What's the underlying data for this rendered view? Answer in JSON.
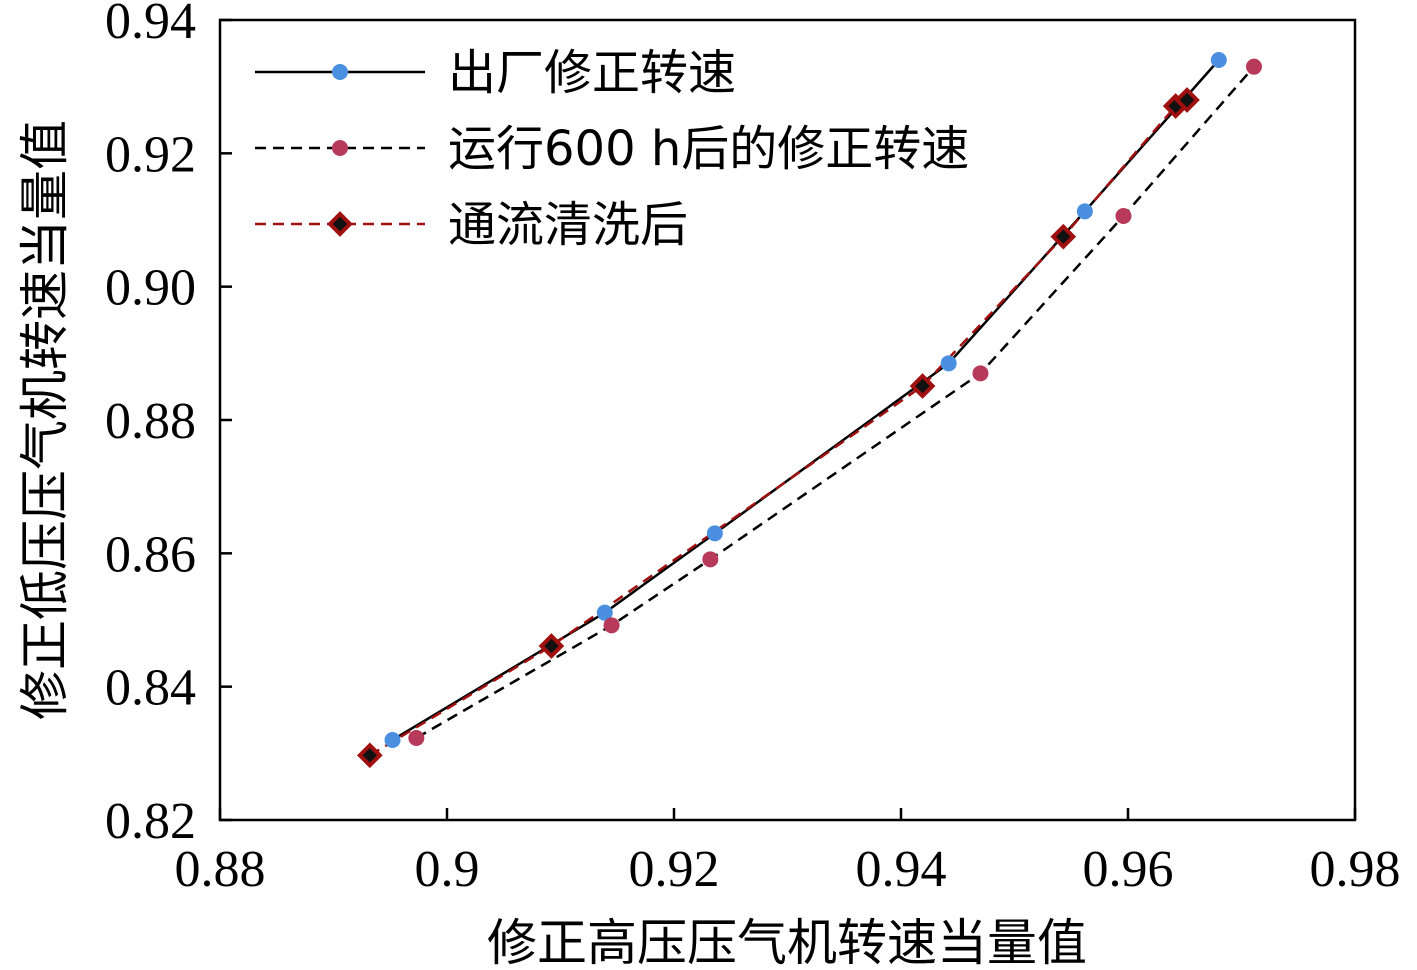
{
  "chart_data": {
    "type": "line",
    "title": "",
    "xlabel": "修正高压压气机转速当量值",
    "ylabel": "修正低压压气机转速当量值",
    "xlim": [
      0.88,
      0.98
    ],
    "ylim": [
      0.82,
      0.94
    ],
    "xticks": [
      0.88,
      0.9,
      0.92,
      0.94,
      0.96,
      0.98
    ],
    "xtick_labels": [
      "0.88",
      "0.9",
      "0.92",
      "0.94",
      "0.96",
      "0.98"
    ],
    "yticks": [
      0.82,
      0.84,
      0.86,
      0.88,
      0.9,
      0.92,
      0.94
    ],
    "ytick_labels": [
      "0.82",
      "0.84",
      "0.86",
      "0.88",
      "0.90",
      "0.92",
      "0.94"
    ],
    "grid": false,
    "legend_position": "top-left",
    "series": [
      {
        "name": "出厂修正转速",
        "line_style": "solid",
        "line_color": "#000000",
        "marker": "circle",
        "marker_color": "#4a8fe0",
        "x": [
          0.8952,
          0.9139,
          0.9236,
          0.9442,
          0.9562,
          0.968
        ],
        "y": [
          0.832,
          0.8511,
          0.863,
          0.8885,
          0.9113,
          0.934
        ]
      },
      {
        "name": "运行600 h后的修正转速",
        "line_style": "dashed",
        "line_color": "#000000",
        "marker": "circle",
        "marker_color": "#b83a5a",
        "x": [
          0.8973,
          0.9145,
          0.9232,
          0.947,
          0.9596,
          0.9711
        ],
        "y": [
          0.8323,
          0.8492,
          0.8591,
          0.887,
          0.9106,
          0.933
        ]
      },
      {
        "name": "通流清洗后",
        "line_style": "dashed",
        "line_color": "#a01010",
        "marker": "diamond",
        "marker_color": "#a01010",
        "x": [
          0.8932,
          0.9092,
          0.9419,
          0.9543,
          0.9642,
          0.9652
        ],
        "y": [
          0.8297,
          0.8461,
          0.8851,
          0.9075,
          0.9271,
          0.928
        ]
      }
    ]
  }
}
